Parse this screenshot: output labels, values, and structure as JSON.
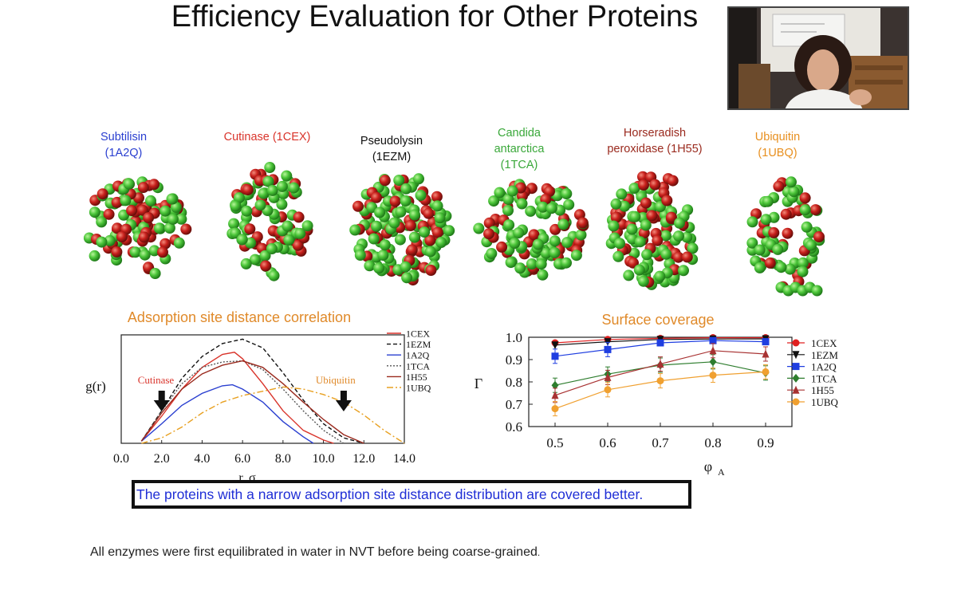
{
  "slide": {
    "title": "Efficiency Evaluation for Other Proteins",
    "conclusion": "The proteins with a narrow adsorption site distance distribution are covered better.",
    "footnote": "All enzymes were first equilibrated in water in NVT before being coarse-grained",
    "footnote_period": "."
  },
  "proteins": [
    {
      "label": "Subtilisin\n(1A2Q)",
      "color": "#2a3fd0"
    },
    {
      "label": "Cutinase (1CEX)",
      "color": "#d9342b"
    },
    {
      "label": "Pseudolysin\n(1EZM)",
      "color": "#111111"
    },
    {
      "label": "Candida\nantarctica\n(1TCA)",
      "color": "#3aa83a"
    },
    {
      "label": "Horseradish\nperoxidase (1H55)",
      "color": "#9a2a1e"
    },
    {
      "label": "Ubiquitin\n(1UBQ)",
      "color": "#e89020"
    }
  ],
  "bead_colors": {
    "green": "#4cc63a",
    "red": "#c8201c"
  },
  "chart_data": [
    {
      "type": "line",
      "title": "Adsorption site distance correlation",
      "xlabel": "r, σ",
      "ylabel": "g(r)",
      "xlim": [
        0,
        14
      ],
      "ylim": [
        0,
        1.0
      ],
      "x_ticks": [
        "0.0",
        "2.0",
        "4.0",
        "6.0",
        "8.0",
        "10.0",
        "12.0",
        "14.0"
      ],
      "annotations": [
        {
          "text": "Cutinase",
          "color": "#d9342b",
          "arrow_x": 2.0
        },
        {
          "text": "Ubiquitin",
          "color": "#e08a2a",
          "arrow_x": 11.0
        }
      ],
      "series": [
        {
          "name": "1CEX",
          "color": "#d9342b",
          "dash": "",
          "x": [
            1,
            2,
            3,
            4,
            5,
            5.6,
            6,
            7,
            8,
            9,
            10,
            10.5
          ],
          "y": [
            0.02,
            0.25,
            0.5,
            0.7,
            0.82,
            0.84,
            0.78,
            0.55,
            0.3,
            0.12,
            0.03,
            0.0
          ]
        },
        {
          "name": "1EZM",
          "color": "#111111",
          "dash": "5,3",
          "x": [
            1,
            2,
            3,
            4,
            5,
            6,
            7,
            8,
            9,
            10,
            11,
            12
          ],
          "y": [
            0.02,
            0.3,
            0.6,
            0.8,
            0.92,
            0.96,
            0.88,
            0.65,
            0.4,
            0.18,
            0.05,
            0.0
          ]
        },
        {
          "name": "1A2Q",
          "color": "#2a3fd0",
          "dash": "",
          "x": [
            1,
            2,
            3,
            4,
            5,
            5.5,
            6,
            7,
            8,
            9,
            9.5
          ],
          "y": [
            0.02,
            0.18,
            0.35,
            0.46,
            0.53,
            0.54,
            0.5,
            0.38,
            0.2,
            0.06,
            0.0
          ]
        },
        {
          "name": "1TCA",
          "color": "#555555",
          "dash": "2,2",
          "x": [
            1,
            2,
            3,
            4,
            5,
            6,
            7,
            8,
            9,
            10,
            11
          ],
          "y": [
            0.02,
            0.3,
            0.55,
            0.7,
            0.75,
            0.76,
            0.68,
            0.5,
            0.3,
            0.12,
            0.0
          ]
        },
        {
          "name": "1H55",
          "color": "#9a2a1e",
          "dash": "",
          "x": [
            1,
            2,
            3,
            4,
            5,
            6,
            7,
            8,
            9,
            10,
            11,
            12
          ],
          "y": [
            0.02,
            0.28,
            0.5,
            0.64,
            0.72,
            0.76,
            0.7,
            0.55,
            0.38,
            0.22,
            0.08,
            0.0
          ]
        },
        {
          "name": "1UBQ",
          "color": "#e8a020",
          "dash": "8,3,2,3",
          "x": [
            1,
            2,
            3,
            4,
            5,
            6,
            7,
            8,
            9,
            10,
            11,
            12,
            13,
            14
          ],
          "y": [
            0.0,
            0.05,
            0.15,
            0.28,
            0.38,
            0.44,
            0.48,
            0.52,
            0.5,
            0.45,
            0.38,
            0.26,
            0.12,
            0.0
          ]
        }
      ]
    },
    {
      "type": "line",
      "title": "Surface coverage",
      "xlabel": "φ",
      "xlabel_sub": "A",
      "ylabel": "Γ",
      "xlim": [
        0.45,
        0.95
      ],
      "ylim": [
        0.6,
        1.0
      ],
      "x_ticks": [
        "0.5",
        "0.6",
        "0.7",
        "0.8",
        "0.9"
      ],
      "y_ticks": [
        "0.6",
        "0.7",
        "0.8",
        "0.9",
        "1.0"
      ],
      "x": [
        0.5,
        0.6,
        0.7,
        0.8,
        0.9
      ],
      "series": [
        {
          "name": "1CEX",
          "color": "#e02020",
          "marker": "circle",
          "values": [
            0.975,
            0.99,
            0.995,
            0.998,
            0.998
          ]
        },
        {
          "name": "1EZM",
          "color": "#111111",
          "marker": "tri-down",
          "values": [
            0.965,
            0.98,
            0.99,
            0.992,
            0.993
          ]
        },
        {
          "name": "1A2Q",
          "color": "#1f3ee0",
          "marker": "square",
          "values": [
            0.915,
            0.945,
            0.975,
            0.985,
            0.98
          ]
        },
        {
          "name": "1TCA",
          "color": "#2e7d2e",
          "marker": "diamond",
          "values": [
            0.785,
            0.835,
            0.875,
            0.89,
            0.84
          ]
        },
        {
          "name": "1H55",
          "color": "#a83232",
          "marker": "tri-up",
          "values": [
            0.74,
            0.82,
            0.88,
            0.94,
            0.925
          ]
        },
        {
          "name": "1UBQ",
          "color": "#f0a030",
          "marker": "circle",
          "values": [
            0.68,
            0.765,
            0.805,
            0.83,
            0.845
          ]
        }
      ]
    }
  ]
}
